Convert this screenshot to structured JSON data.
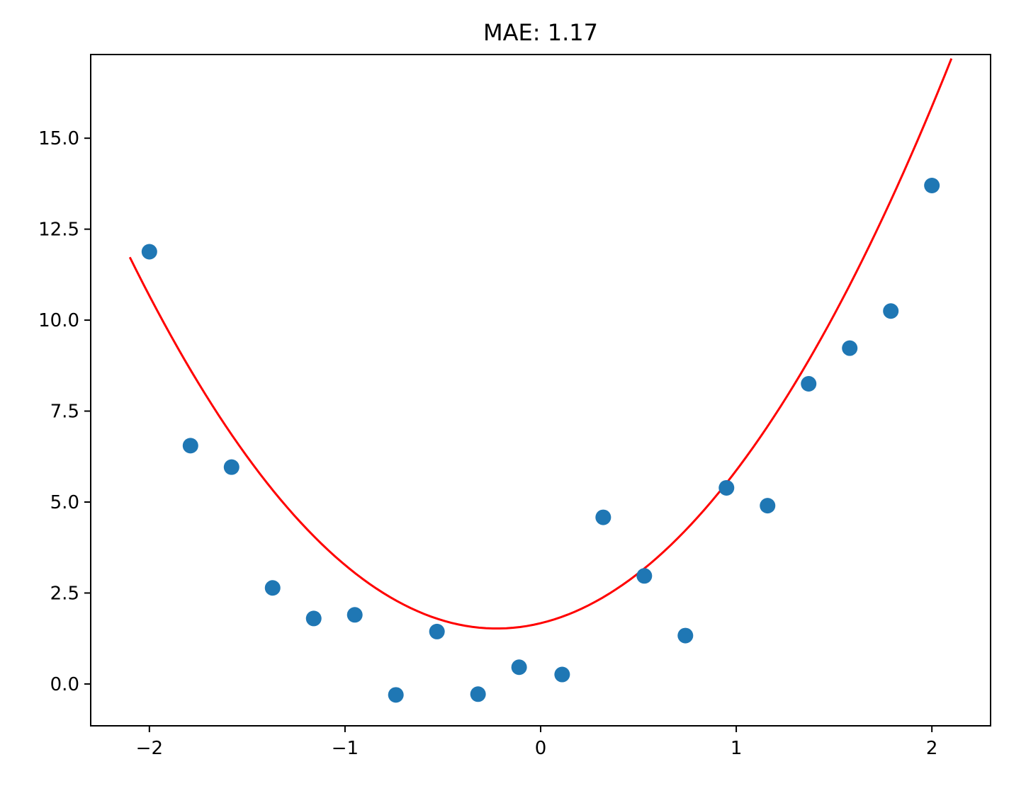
{
  "chart_data": {
    "type": "scatter",
    "title": "MAE: 1.17",
    "xlabel": "",
    "ylabel": "",
    "xlim": [
      -2.3,
      2.3
    ],
    "ylim": [
      -1.15,
      17.3
    ],
    "xticks": [
      {
        "value": -2,
        "label": "−2"
      },
      {
        "value": -1,
        "label": "−1"
      },
      {
        "value": 0,
        "label": "0"
      },
      {
        "value": 1,
        "label": "1"
      },
      {
        "value": 2,
        "label": "2"
      }
    ],
    "yticks": [
      {
        "value": 0,
        "label": "0.0"
      },
      {
        "value": 2.5,
        "label": "2.5"
      },
      {
        "value": 5,
        "label": "5.0"
      },
      {
        "value": 7.5,
        "label": "7.5"
      },
      {
        "value": 10,
        "label": "10.0"
      },
      {
        "value": 12.5,
        "label": "12.5"
      },
      {
        "value": 15,
        "label": "15.0"
      }
    ],
    "grid": false,
    "series": [
      {
        "kind": "scatter",
        "color": "#1f77b4",
        "points": [
          {
            "x": -2.0,
            "y": 11.88
          },
          {
            "x": -1.79,
            "y": 6.55
          },
          {
            "x": -1.58,
            "y": 5.96
          },
          {
            "x": -1.37,
            "y": 2.64
          },
          {
            "x": -1.16,
            "y": 1.8
          },
          {
            "x": -0.95,
            "y": 1.9
          },
          {
            "x": -0.74,
            "y": -0.3
          },
          {
            "x": -0.53,
            "y": 1.44
          },
          {
            "x": -0.32,
            "y": -0.28
          },
          {
            "x": -0.11,
            "y": 0.46
          },
          {
            "x": 0.11,
            "y": 0.26
          },
          {
            "x": 0.32,
            "y": 4.58
          },
          {
            "x": 0.53,
            "y": 2.97
          },
          {
            "x": 0.74,
            "y": 1.33
          },
          {
            "x": 0.95,
            "y": 5.39
          },
          {
            "x": 1.16,
            "y": 4.9
          },
          {
            "x": 1.37,
            "y": 8.25
          },
          {
            "x": 1.58,
            "y": 9.23
          },
          {
            "x": 1.79,
            "y": 10.25
          },
          {
            "x": 2.0,
            "y": 13.7
          }
        ]
      },
      {
        "kind": "line",
        "color": "#ff0000",
        "curve": {
          "a": 2.9,
          "b": 1.3,
          "c": 1.67,
          "x_start": -2.1,
          "x_end": 2.1,
          "samples": 120
        }
      }
    ]
  }
}
